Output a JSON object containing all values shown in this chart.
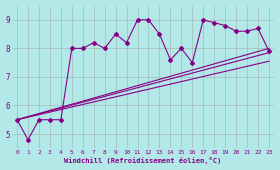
{
  "background_color": "#b2e8e8",
  "grid_color": "#999999",
  "line_color": "#880088",
  "xlim": [
    -0.5,
    23.5
  ],
  "ylim": [
    4.5,
    9.5
  ],
  "xticks": [
    0,
    1,
    2,
    3,
    4,
    5,
    6,
    7,
    8,
    9,
    10,
    11,
    12,
    13,
    14,
    15,
    16,
    17,
    18,
    19,
    20,
    21,
    22,
    23
  ],
  "yticks": [
    5,
    6,
    7,
    8,
    9
  ],
  "xlabel": "Windchill (Refroidissement éolien,°C)",
  "series_main_x": [
    0,
    1,
    2,
    3,
    4,
    5,
    6,
    7,
    8,
    9,
    10,
    11,
    12,
    13,
    14,
    15,
    16,
    17,
    18,
    19,
    20,
    21,
    22,
    23
  ],
  "series_main_y": [
    5.5,
    4.8,
    5.5,
    5.5,
    5.5,
    8.0,
    8.0,
    8.2,
    8.0,
    8.5,
    8.2,
    9.0,
    9.0,
    8.5,
    7.6,
    8.0,
    7.5,
    9.0,
    8.9,
    8.8,
    8.6,
    8.6,
    8.7,
    7.9
  ],
  "line1_x": [
    0,
    23
  ],
  "line1_y": [
    5.5,
    7.85
  ],
  "line2_x": [
    0,
    23
  ],
  "line2_y": [
    5.5,
    7.55
  ],
  "line3_x": [
    0,
    23
  ],
  "line3_y": [
    5.5,
    8.0
  ]
}
